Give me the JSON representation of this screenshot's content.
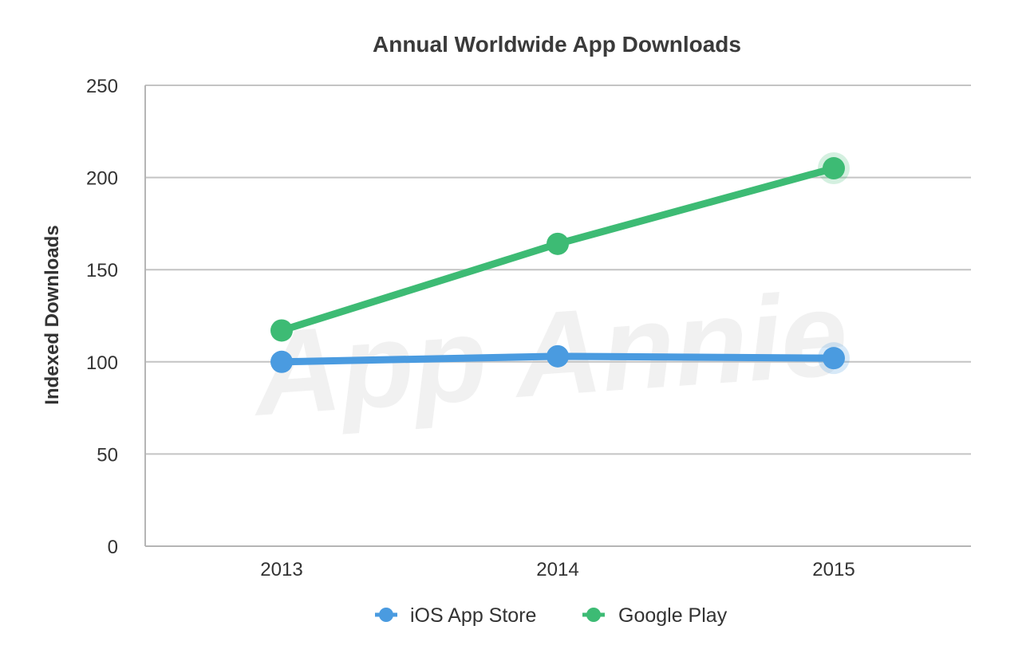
{
  "chart_data": {
    "type": "line",
    "title": "Annual Worldwide App Downloads",
    "xlabel": "",
    "ylabel": "Indexed Downloads",
    "categories": [
      "2013",
      "2014",
      "2015"
    ],
    "ylim": [
      0,
      250
    ],
    "yticks": [
      0,
      50,
      100,
      150,
      200,
      250
    ],
    "grid": true,
    "legend_position": "bottom",
    "watermark": "App Annie",
    "series": [
      {
        "name": "iOS App Store",
        "values": [
          100,
          103,
          102
        ],
        "color": "#4a9be0"
      },
      {
        "name": "Google Play",
        "values": [
          117,
          164,
          205
        ],
        "color": "#3dbb74"
      }
    ]
  }
}
